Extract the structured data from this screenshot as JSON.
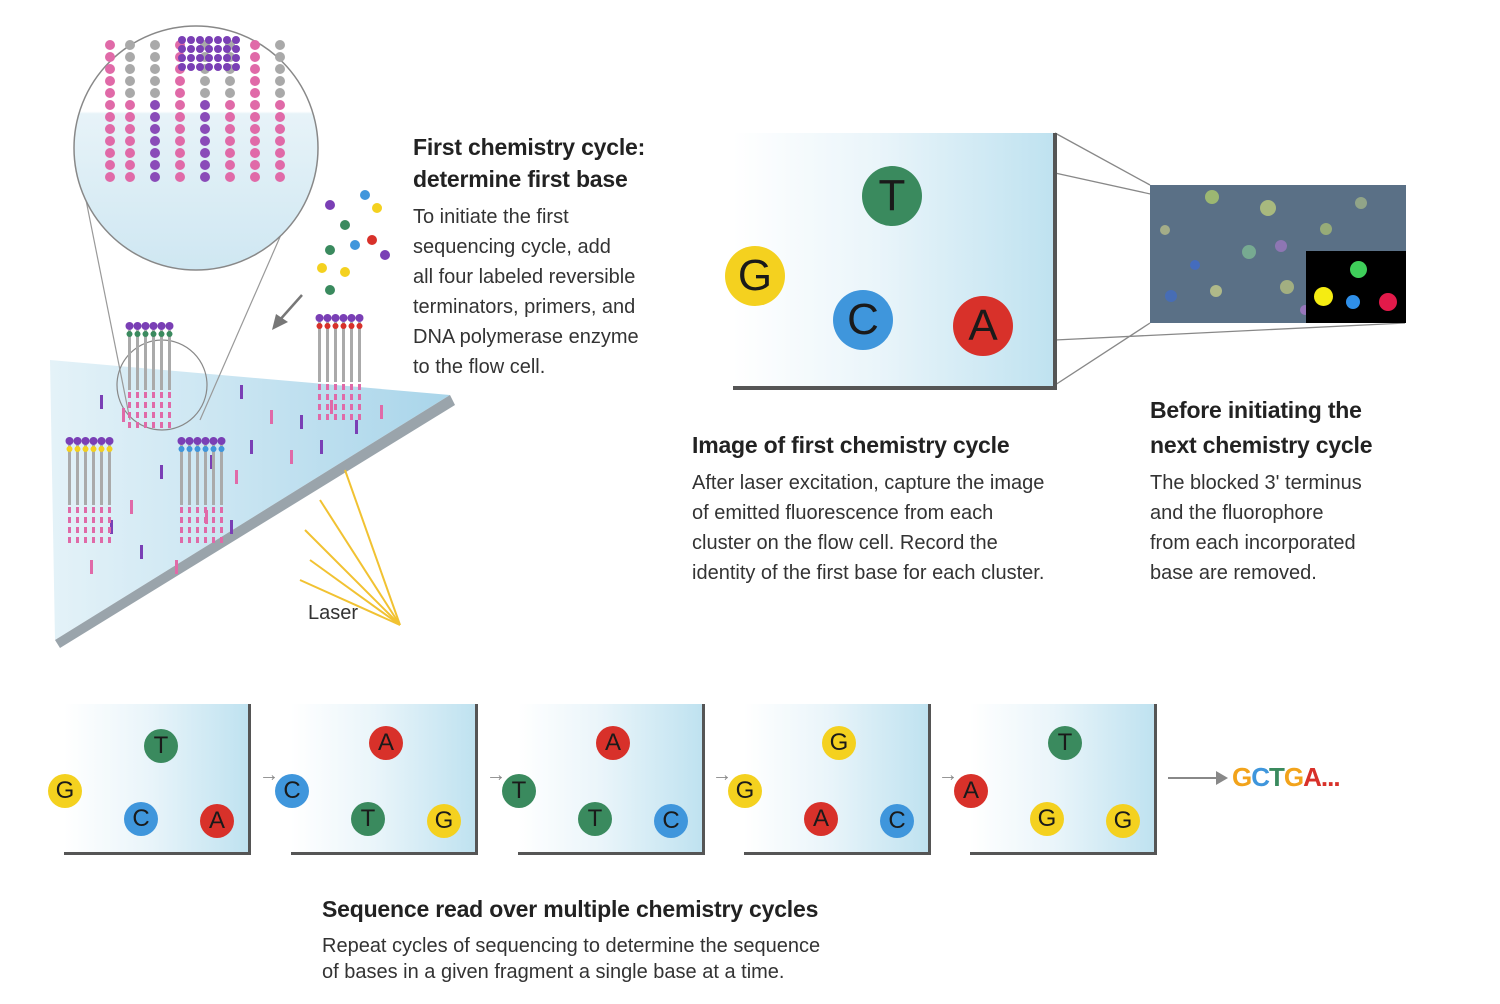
{
  "first_cycle": {
    "title_line1": "First chemistry cycle:",
    "title_line2": "determine first base",
    "body": [
      "To initiate the first",
      "sequencing cycle, add",
      "all four labeled reversible",
      "terminators, primers, and",
      "DNA polymerase enzyme",
      "to the flow cell."
    ]
  },
  "laser_label": "Laser",
  "image_cycle": {
    "title": "Image of first chemistry cycle",
    "body": [
      "After laser excitation, capture the image",
      "of emitted fluorescence from each",
      "cluster on the flow cell. Record the",
      "identity of the first base for each cluster."
    ],
    "bases": [
      {
        "letter": "T",
        "color": "#3a8a5e"
      },
      {
        "letter": "G",
        "color": "#f4d11f"
      },
      {
        "letter": "C",
        "color": "#3f96dc"
      },
      {
        "letter": "A",
        "color": "#d8312a"
      }
    ]
  },
  "next_cycle": {
    "title_line1": "Before initiating the",
    "title_line2": "next chemistry cycle",
    "body": [
      "The blocked 3' terminus",
      "and the fluorophore",
      "from each incorporated",
      "base are removed."
    ]
  },
  "sequence_panels": [
    {
      "bases": [
        "T",
        "G",
        "C",
        "A"
      ]
    },
    {
      "bases": [
        "A",
        "C",
        "T",
        "G"
      ]
    },
    {
      "bases": [
        "A",
        "T",
        "T",
        "C"
      ]
    },
    {
      "bases": [
        "G",
        "G",
        "A",
        "C"
      ]
    },
    {
      "bases": [
        "T",
        "A",
        "G",
        "G"
      ]
    }
  ],
  "sequence_result": {
    "letters": [
      {
        "char": "G",
        "color": "#f2a31b"
      },
      {
        "char": "C",
        "color": "#3f96dc"
      },
      {
        "char": "T",
        "color": "#3a8a5e"
      },
      {
        "char": "G",
        "color": "#f2a31b"
      },
      {
        "char": "A",
        "color": "#d8312a"
      },
      {
        "char": "...",
        "color": "#d8312a"
      }
    ]
  },
  "multi_cycle": {
    "title": "Sequence read over multiple chemistry cycles",
    "body": [
      "Repeat cycles of sequencing to determine the sequence",
      "of bases in a given fragment a single base at a time."
    ]
  }
}
